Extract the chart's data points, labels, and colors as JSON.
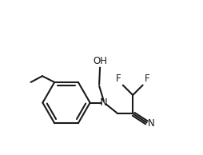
{
  "background_color": "#ffffff",
  "line_color": "#1a1a1a",
  "line_width": 1.5,
  "figsize": [
    2.54,
    1.94
  ],
  "dpi": 100,
  "xlim": [
    0.0,
    1.0
  ],
  "ylim": [
    0.0,
    1.0
  ]
}
